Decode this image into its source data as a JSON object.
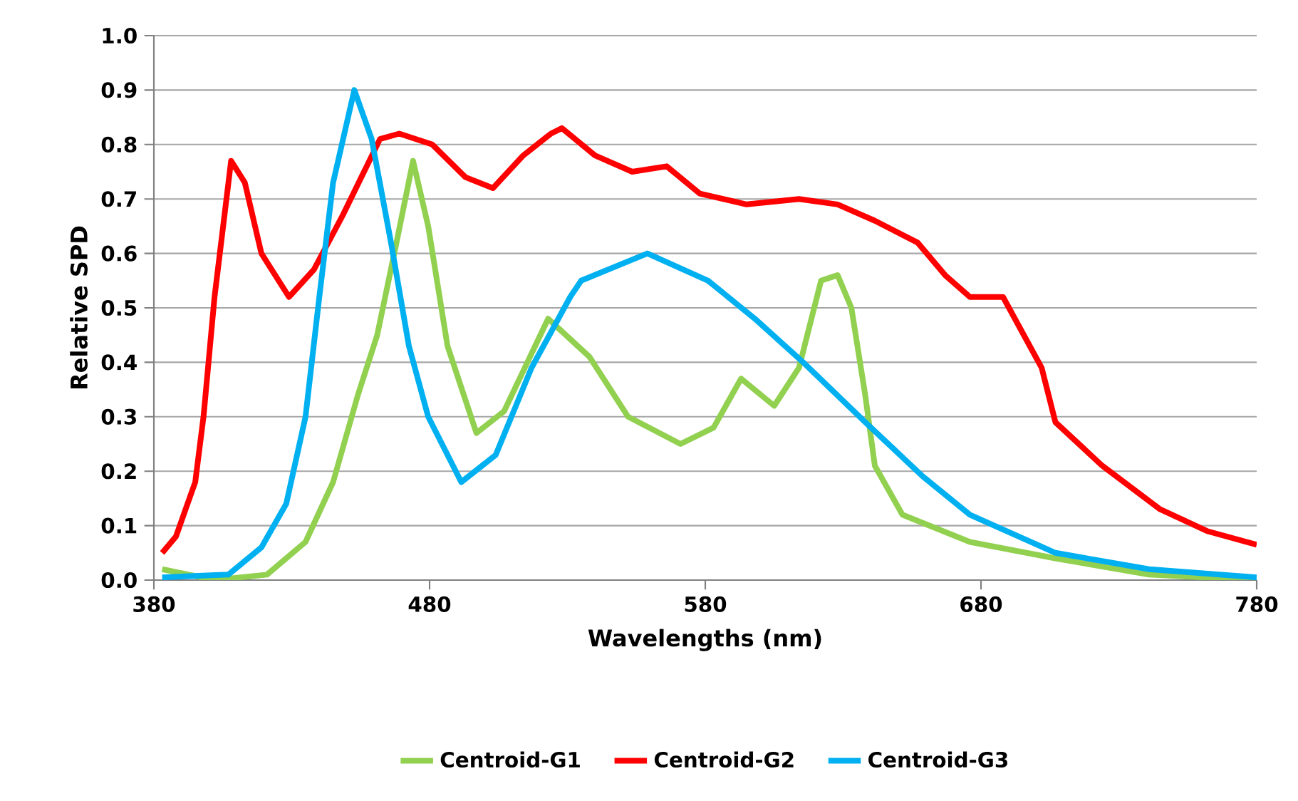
{
  "chart_data": {
    "type": "line",
    "xlabel": "Wavelengths (nm)",
    "ylabel": "Relative SPD",
    "xlim": [
      380,
      780
    ],
    "xticks": [
      380,
      480,
      580,
      680,
      780
    ],
    "ylim": [
      0,
      1.0
    ],
    "yticks": [
      {
        "value": 0,
        "label": "0.0"
      },
      0.1,
      0.2,
      0.3,
      0.4,
      0.5,
      0.6,
      0.7,
      0.8,
      0.9,
      {
        "value": 1,
        "label": "1.0"
      }
    ],
    "grid": "y",
    "legend": "bottom",
    "line_style": "solid",
    "series": [
      {
        "name": "Centroid-G1",
        "color": "#92d050",
        "x": [
          383,
          402,
          421,
          435,
          445,
          454,
          461,
          468,
          474,
          479.5,
          486.5,
          497,
          507,
          523,
          538,
          552,
          571,
          583,
          593,
          605,
          614,
          622,
          628,
          633,
          638,
          641.5,
          651.5,
          676,
          707,
          741,
          780
        ],
        "values": [
          0.02,
          0.0,
          0.01,
          0.07,
          0.18,
          0.34,
          0.45,
          0.62,
          0.77,
          0.65,
          0.43,
          0.27,
          0.31,
          0.48,
          0.41,
          0.3,
          0.25,
          0.28,
          0.37,
          0.32,
          0.39,
          0.55,
          0.56,
          0.5,
          0.34,
          0.21,
          0.12,
          0.07,
          0.04,
          0.01,
          0.0
        ]
      },
      {
        "name": "Centroid-G2",
        "color": "#ff0000",
        "x": [
          383,
          388,
          395,
          398,
          402,
          408,
          413,
          419,
          429,
          438,
          448.5,
          462,
          469,
          481,
          493,
          503,
          514,
          524,
          528,
          540,
          553.5,
          566,
          578,
          595,
          614,
          628,
          641.5,
          657,
          667,
          676,
          688,
          702,
          707,
          724,
          745,
          762,
          780
        ],
        "values": [
          0.05,
          0.08,
          0.18,
          0.3,
          0.52,
          0.77,
          0.73,
          0.6,
          0.52,
          0.57,
          0.67,
          0.81,
          0.82,
          0.8,
          0.74,
          0.72,
          0.78,
          0.82,
          0.83,
          0.78,
          0.75,
          0.76,
          0.71,
          0.69,
          0.7,
          0.69,
          0.66,
          0.62,
          0.56,
          0.52,
          0.52,
          0.39,
          0.29,
          0.21,
          0.13,
          0.09,
          0.065
        ]
      },
      {
        "name": "Centroid-G3",
        "color": "#00b0f0",
        "x": [
          383,
          407,
          419,
          428,
          435,
          440,
          445,
          452.7,
          459,
          466,
          472.5,
          479.5,
          491.5,
          504,
          517,
          531,
          535,
          559,
          581,
          598,
          615.5,
          638,
          659,
          676,
          707,
          741,
          780
        ],
        "values": [
          0.005,
          0.01,
          0.06,
          0.14,
          0.3,
          0.52,
          0.73,
          0.9,
          0.81,
          0.62,
          0.43,
          0.3,
          0.18,
          0.23,
          0.39,
          0.52,
          0.55,
          0.6,
          0.55,
          0.48,
          0.4,
          0.29,
          0.19,
          0.12,
          0.05,
          0.02,
          0.005
        ]
      }
    ]
  }
}
